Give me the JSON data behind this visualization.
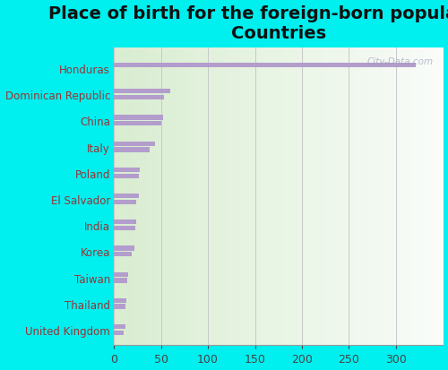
{
  "title": "Place of birth for the foreign-born population -\nCountries",
  "background_color": "#00EFEF",
  "bar_color": "#b39dcc",
  "categories": [
    "Honduras",
    "Dominican Republic",
    "China",
    "Italy",
    "Poland",
    "El Salvador",
    "India",
    "Korea",
    "Taiwan",
    "Thailand",
    "United Kingdom"
  ],
  "values1": [
    321,
    60,
    52,
    44,
    28,
    27,
    24,
    22,
    15,
    13,
    12
  ],
  "values2": [
    0,
    53,
    50,
    38,
    27,
    24,
    23,
    19,
    14,
    12,
    10
  ],
  "xlim": [
    0,
    350
  ],
  "xticks": [
    0,
    50,
    100,
    150,
    200,
    250,
    300
  ],
  "watermark": "City-Data.com",
  "title_fontsize": 14,
  "label_fontsize": 8.5,
  "tick_fontsize": 9,
  "label_color": "#993333"
}
